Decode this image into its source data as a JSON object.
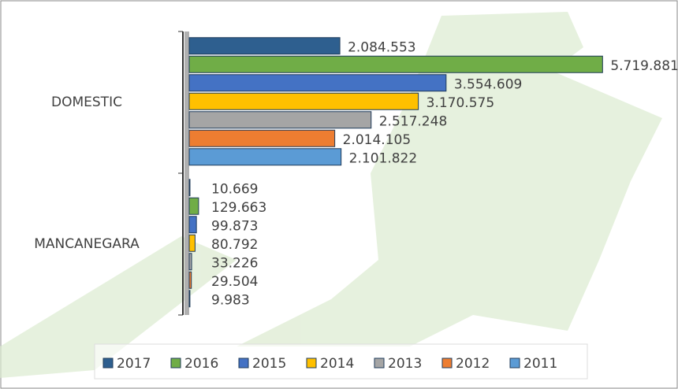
{
  "chart_data": {
    "type": "bar",
    "orientation": "horizontal",
    "categories": [
      "DOMESTIC",
      "MANCANEGARA"
    ],
    "series": [
      {
        "name": "2017",
        "color": "#2e5f8f",
        "values": [
          2084553,
          10669
        ],
        "value_labels": [
          "2.084.553",
          "10.669"
        ]
      },
      {
        "name": "2016",
        "color": "#70ad47",
        "values": [
          5719881,
          129663
        ],
        "value_labels": [
          "5.719.881",
          "129.663"
        ]
      },
      {
        "name": "2015",
        "color": "#4472c4",
        "values": [
          3554609,
          99873
        ],
        "value_labels": [
          "3.554.609",
          "99.873"
        ]
      },
      {
        "name": "2014",
        "color": "#ffc000",
        "values": [
          3170575,
          80792
        ],
        "value_labels": [
          "3.170.575",
          "80.792"
        ]
      },
      {
        "name": "2013",
        "color": "#a5a5a5",
        "values": [
          2517248,
          33226
        ],
        "value_labels": [
          "2.517.248",
          "33.226"
        ]
      },
      {
        "name": "2012",
        "color": "#ed7d31",
        "values": [
          2014105,
          29504
        ],
        "value_labels": [
          "2.014.105",
          "29.504"
        ]
      },
      {
        "name": "2011",
        "color": "#5b9bd5",
        "values": [
          2101822,
          9983
        ],
        "value_labels": [
          "2.101.822",
          "9.983"
        ]
      }
    ],
    "xlim": [
      0,
      6000000
    ],
    "legend": "bottom",
    "grid": false
  }
}
